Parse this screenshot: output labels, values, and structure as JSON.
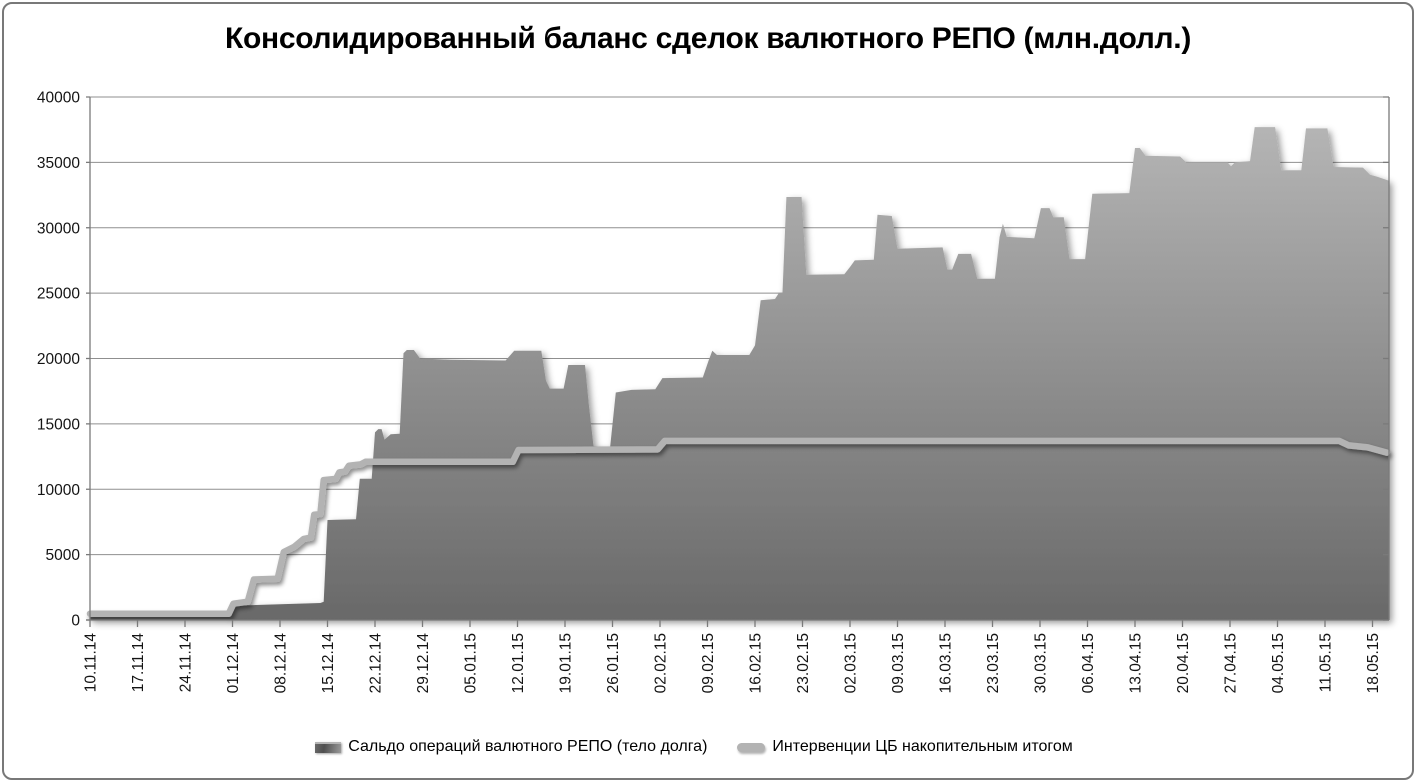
{
  "chart_data": {
    "type": "area",
    "title": "Консолидированный баланс сделок валютного РЕПО (млн.долл.)",
    "categories": [
      "10.11.14",
      "17.11.14",
      "24.11.14",
      "01.12.14",
      "08.12.14",
      "15.12.14",
      "22.12.14",
      "29.12.14",
      "05.01.15",
      "12.01.15",
      "19.01.15",
      "26.01.15",
      "02.02.15",
      "09.02.15",
      "16.02.15",
      "23.02.15",
      "02.03.15",
      "09.03.15",
      "16.03.15",
      "23.03.15",
      "30.03.15",
      "06.04.15",
      "13.04.15",
      "20.04.15",
      "27.04.15",
      "04.05.15",
      "11.05.15",
      "18.05.15"
    ],
    "yticks": [
      0,
      5000,
      10000,
      15000,
      20000,
      25000,
      30000,
      35000,
      40000
    ],
    "ylim": [
      0,
      40000
    ],
    "grid": "horizontal",
    "legend_position": "bottom",
    "axis_color": "#7a7a7a",
    "gridline_color": "#8f8f8f",
    "label_color": "#141414",
    "series": [
      {
        "name": "Сальдо операций валютного РЕПО (тело долга)",
        "type": "area",
        "fill_top": "#b9b9b9",
        "fill_bottom": "#696969",
        "points": [
          [
            0,
            350
          ],
          [
            2.9,
            350
          ],
          [
            3.0,
            900
          ],
          [
            3.1,
            1100
          ],
          [
            4.0,
            1200
          ],
          [
            4.85,
            1300
          ],
          [
            4.92,
            1400
          ],
          [
            5.0,
            7650
          ],
          [
            5.6,
            7700
          ],
          [
            5.68,
            10800
          ],
          [
            5.93,
            10800
          ],
          [
            6.0,
            14350
          ],
          [
            6.07,
            14600
          ],
          [
            6.14,
            14600
          ],
          [
            6.2,
            13800
          ],
          [
            6.33,
            14200
          ],
          [
            6.52,
            14250
          ],
          [
            6.6,
            20400
          ],
          [
            6.67,
            20650
          ],
          [
            6.82,
            20650
          ],
          [
            6.95,
            20000
          ],
          [
            7.6,
            19900
          ],
          [
            8.75,
            19850
          ],
          [
            8.93,
            20600
          ],
          [
            9.5,
            20600
          ],
          [
            9.6,
            18300
          ],
          [
            9.68,
            17700
          ],
          [
            9.97,
            17700
          ],
          [
            10.07,
            19500
          ],
          [
            10.42,
            19500
          ],
          [
            10.5,
            16500
          ],
          [
            10.6,
            13300
          ],
          [
            10.95,
            13200
          ],
          [
            11.07,
            17400
          ],
          [
            11.4,
            17600
          ],
          [
            11.9,
            17650
          ],
          [
            12.05,
            18500
          ],
          [
            12.9,
            18550
          ],
          [
            13.02,
            19800
          ],
          [
            13.1,
            20600
          ],
          [
            13.2,
            20270
          ],
          [
            13.88,
            20270
          ],
          [
            14.0,
            21000
          ],
          [
            14.12,
            24450
          ],
          [
            14.42,
            24550
          ],
          [
            14.5,
            25000
          ],
          [
            14.58,
            25050
          ],
          [
            14.66,
            32350
          ],
          [
            14.98,
            32350
          ],
          [
            15.08,
            26400
          ],
          [
            15.88,
            26450
          ],
          [
            16.0,
            27000
          ],
          [
            16.1,
            27500
          ],
          [
            16.5,
            27550
          ],
          [
            16.58,
            31000
          ],
          [
            16.88,
            30900
          ],
          [
            17.0,
            28400
          ],
          [
            17.95,
            28500
          ],
          [
            18.05,
            26800
          ],
          [
            18.15,
            26800
          ],
          [
            18.28,
            28000
          ],
          [
            18.55,
            28000
          ],
          [
            18.68,
            26100
          ],
          [
            19.05,
            26100
          ],
          [
            19.15,
            29300
          ],
          [
            19.22,
            30300
          ],
          [
            19.3,
            29300
          ],
          [
            19.88,
            29200
          ],
          [
            20.02,
            31500
          ],
          [
            20.2,
            31500
          ],
          [
            20.28,
            30800
          ],
          [
            20.5,
            30800
          ],
          [
            20.62,
            27600
          ],
          [
            20.95,
            27600
          ],
          [
            21.1,
            32600
          ],
          [
            21.88,
            32650
          ],
          [
            22.0,
            36100
          ],
          [
            22.1,
            36100
          ],
          [
            22.22,
            35500
          ],
          [
            22.95,
            35450
          ],
          [
            23.08,
            35000
          ],
          [
            23.95,
            35000
          ],
          [
            24.02,
            34700
          ],
          [
            24.1,
            35000
          ],
          [
            24.42,
            35100
          ],
          [
            24.52,
            37700
          ],
          [
            24.95,
            37700
          ],
          [
            25.08,
            34400
          ],
          [
            25.5,
            34400
          ],
          [
            25.6,
            37600
          ],
          [
            26.05,
            37600
          ],
          [
            26.18,
            34650
          ],
          [
            26.8,
            34600
          ],
          [
            26.95,
            34050
          ],
          [
            27.1,
            33900
          ],
          [
            27.35,
            33600
          ]
        ]
      },
      {
        "name": "Интервенции ЦБ накопительным итогом",
        "type": "line",
        "color": "#b3b3b3",
        "width": 6.5,
        "points": [
          [
            0,
            480
          ],
          [
            2.92,
            480
          ],
          [
            3.02,
            1250
          ],
          [
            3.32,
            1400
          ],
          [
            3.45,
            3100
          ],
          [
            3.95,
            3150
          ],
          [
            4.08,
            5200
          ],
          [
            4.3,
            5600
          ],
          [
            4.5,
            6200
          ],
          [
            4.65,
            6300
          ],
          [
            4.72,
            8050
          ],
          [
            4.85,
            8100
          ],
          [
            4.92,
            10700
          ],
          [
            5.18,
            10800
          ],
          [
            5.25,
            11300
          ],
          [
            5.37,
            11350
          ],
          [
            5.45,
            11800
          ],
          [
            5.7,
            11900
          ],
          [
            5.8,
            12100
          ],
          [
            8.9,
            12100
          ],
          [
            9.02,
            13000
          ],
          [
            11.95,
            13050
          ],
          [
            12.1,
            13700
          ],
          [
            26.3,
            13700
          ],
          [
            26.5,
            13350
          ],
          [
            26.9,
            13200
          ],
          [
            27.3,
            12800
          ]
        ]
      }
    ]
  }
}
